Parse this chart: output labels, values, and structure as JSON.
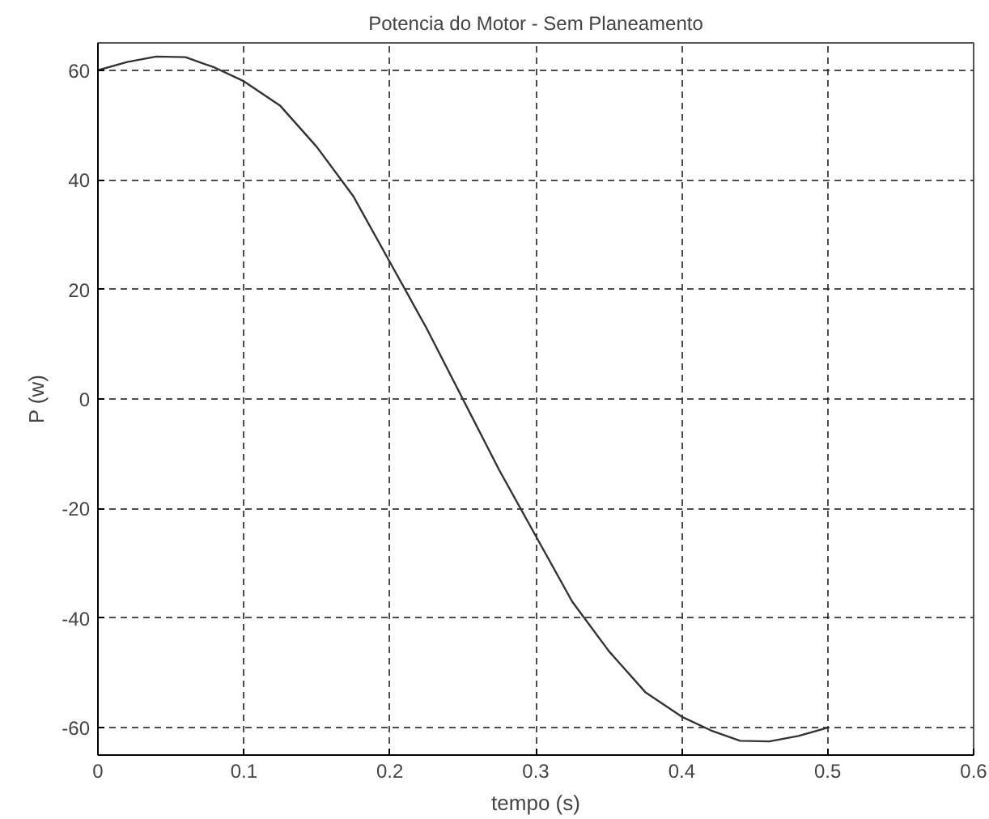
{
  "chart_data": {
    "type": "line",
    "title": "Potencia do Motor - Sem Planeamento",
    "xlabel": "tempo (s)",
    "ylabel": "P (w)",
    "x": [
      0,
      0.02,
      0.04,
      0.06,
      0.08,
      0.1,
      0.125,
      0.15,
      0.175,
      0.2,
      0.225,
      0.25,
      0.275,
      0.3,
      0.325,
      0.35,
      0.375,
      0.4,
      0.42,
      0.44,
      0.46,
      0.48,
      0.5
    ],
    "series": [
      {
        "color": "#333333",
        "values": [
          60,
          61.5,
          62.5,
          62.4,
          60.5,
          58,
          53.5,
          46,
          37,
          25,
          13,
          0,
          -13,
          -25,
          -37,
          -46,
          -53.5,
          -58,
          -60.5,
          -62.4,
          -62.5,
          -61.5,
          -60
        ]
      }
    ],
    "xlim": [
      0,
      0.6
    ],
    "ylim": [
      -65,
      65
    ],
    "xticks": [
      0,
      0.1,
      0.2,
      0.3,
      0.4,
      0.5,
      0.6
    ],
    "yticks": [
      -60,
      -40,
      -20,
      0,
      20,
      40,
      60
    ],
    "grid": true,
    "line_style": "solid",
    "marker": "none"
  }
}
